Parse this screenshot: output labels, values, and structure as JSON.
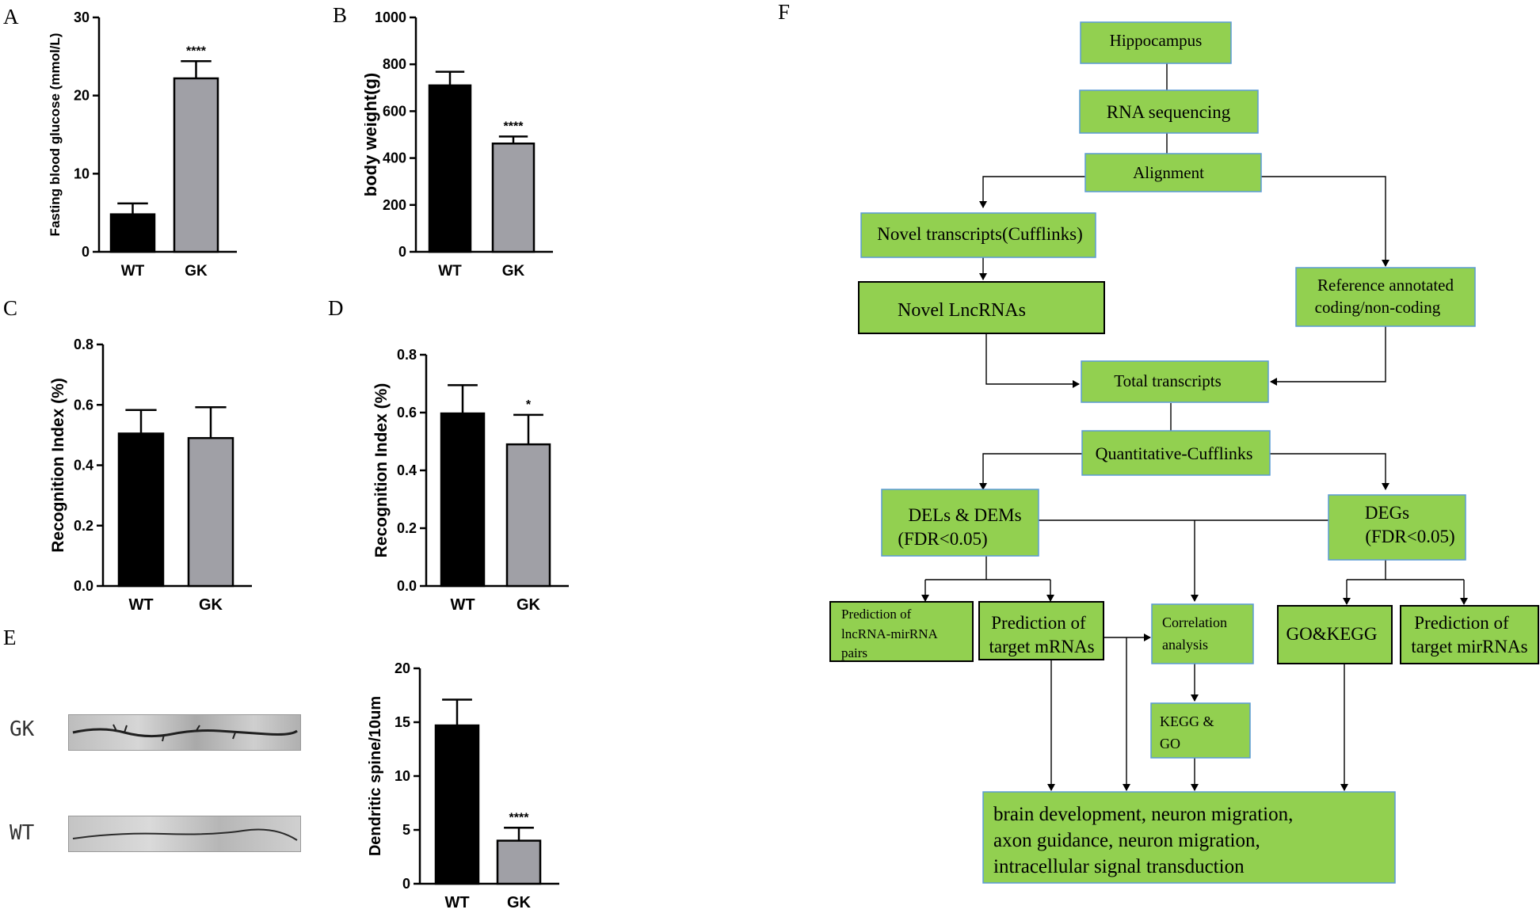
{
  "panels": {
    "A": "A",
    "B": "B",
    "C": "C",
    "D": "D",
    "E": "E",
    "F": "F"
  },
  "chart_data": [
    {
      "id": "A",
      "type": "bar",
      "categories": [
        "WT",
        "GK"
      ],
      "values": [
        4.8,
        22.2
      ],
      "errors": [
        1.4,
        2.2
      ],
      "significance": [
        "",
        "****"
      ],
      "ylabel": "Fasting blood glucose (mmol/L)",
      "ylim": [
        0,
        30
      ],
      "yticks": [
        0,
        10,
        20,
        30
      ],
      "colors": [
        "#000000",
        "#a0a0a6"
      ]
    },
    {
      "id": "B",
      "type": "bar",
      "categories": [
        "WT",
        "GK"
      ],
      "values": [
        710,
        462
      ],
      "errors": [
        58,
        30
      ],
      "significance": [
        "",
        "****"
      ],
      "ylabel": "body weight(g)",
      "ylim": [
        0,
        1000
      ],
      "yticks": [
        0,
        200,
        400,
        600,
        800,
        1000
      ],
      "colors": [
        "#000000",
        "#a0a0a6"
      ]
    },
    {
      "id": "C",
      "type": "bar",
      "categories": [
        "WT",
        "GK"
      ],
      "values": [
        0.505,
        0.49
      ],
      "errors": [
        0.078,
        0.102
      ],
      "significance": [
        "",
        ""
      ],
      "ylabel": "Recognition Index (%)",
      "ylim": [
        0,
        0.8
      ],
      "yticks": [
        "0.0",
        "0.2",
        "0.4",
        "0.6",
        "0.8"
      ],
      "colors": [
        "#000000",
        "#a0a0a6"
      ]
    },
    {
      "id": "D",
      "type": "bar",
      "categories": [
        "WT",
        "GK"
      ],
      "values": [
        0.597,
        0.49
      ],
      "errors": [
        0.098,
        0.102
      ],
      "significance": [
        "",
        "*"
      ],
      "ylabel": "Recognition Index (%)",
      "ylim": [
        0,
        0.8
      ],
      "yticks": [
        "0.0",
        "0.2",
        "0.4",
        "0.6",
        "0.8"
      ],
      "colors": [
        "#000000",
        "#a0a0a6"
      ]
    },
    {
      "id": "E",
      "type": "bar",
      "categories": [
        "WT",
        "GK"
      ],
      "values": [
        14.7,
        4.0
      ],
      "errors": [
        2.4,
        1.2
      ],
      "significance": [
        "",
        "****"
      ],
      "ylabel": "Dendritic spine/10um",
      "ylim": [
        0,
        20
      ],
      "yticks": [
        0,
        5,
        10,
        15,
        20
      ],
      "colors": [
        "#000000",
        "#a0a0a6"
      ]
    }
  ],
  "micrographs": {
    "top_label": "GK",
    "bottom_label": "WT"
  },
  "flowchart": {
    "fill": "#92d050",
    "nodes": {
      "hippocampus": "Hippocampus",
      "rnaseq": "RNA sequencing",
      "alignment": "Alignment",
      "novel_transcripts": "Novel transcripts(Cufflinks)",
      "novel_lnc": "Novel LncRNAs",
      "reference_1": "Reference annotated",
      "reference_2": "coding/non-coding",
      "total": "Total transcripts",
      "quant": "Quantitative-Cufflinks",
      "dels_1": "DELs & DEMs",
      "dels_2": "(FDR<0.05)",
      "degs_1": "DEGs",
      "degs_2": "(FDR<0.05)",
      "pred_pairs_1": "Prediction of",
      "pred_pairs_2": "lncRNA-mirRNA",
      "pred_pairs_3": "pairs",
      "pred_target_1": "Prediction of",
      "pred_target_2": "target mRNAs",
      "corr_1": "Correlation",
      "corr_2": "analysis",
      "gokegg": "GO&KEGG",
      "pred_mir_1": "Prediction of",
      "pred_mir_2": "target mirRNAs",
      "kegggo_1": "KEGG &",
      "kegggo_2": "GO",
      "final_1": "brain development, neuron migration,",
      "final_2": "axon guidance, neuron migration,",
      "final_3": "intracellular signal transduction"
    }
  }
}
